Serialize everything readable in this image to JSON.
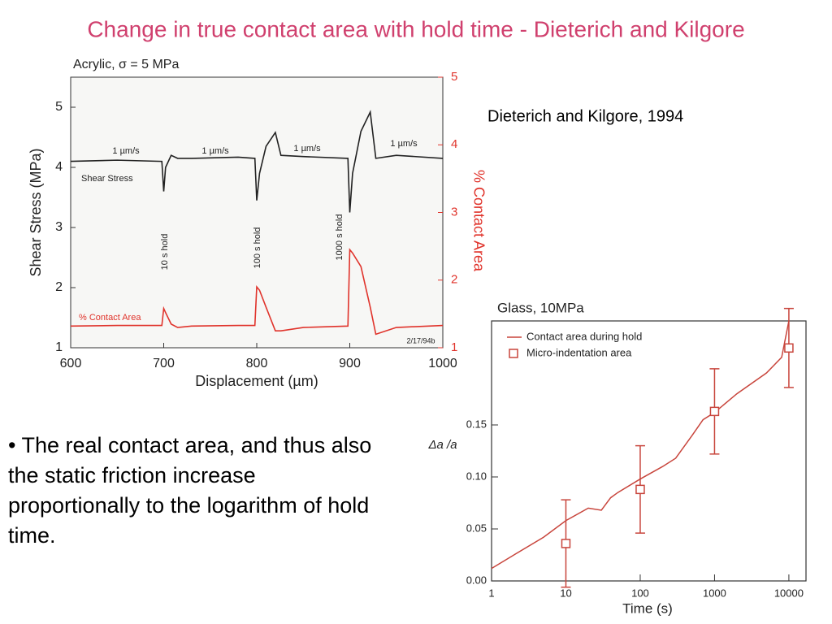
{
  "title": "Change in true contact area with hold time - Dieterich and Kilgore",
  "citation": "Dieterich and Kilgore, 1994",
  "bullet": "• The real contact area, and thus also the static friction increase proportionally to the logarithm of hold time.",
  "chart_data": [
    {
      "type": "line",
      "title": "Acrylic, σ = 5 MPa",
      "xlabel": "Displacement (µm)",
      "ylabel": "Shear Stress (MPa)",
      "y2label": "% Contact Area",
      "x": [
        600,
        650,
        698,
        700,
        702,
        708,
        715,
        730,
        780,
        798,
        800,
        803,
        810,
        820,
        826,
        850,
        898,
        900,
        903,
        912,
        922,
        928,
        950,
        1000
      ],
      "series": [
        {
          "name": "Shear Stress",
          "color": "#222222",
          "values": [
            4.1,
            4.12,
            4.1,
            3.6,
            4.0,
            4.2,
            4.15,
            4.15,
            4.17,
            4.15,
            3.45,
            3.9,
            4.35,
            4.58,
            4.2,
            4.18,
            4.15,
            3.25,
            3.9,
            4.6,
            4.92,
            4.15,
            4.2,
            4.15
          ]
        },
        {
          "name": "% Contact Area",
          "color": "#e0332b",
          "axis": "y2",
          "values": [
            1.32,
            1.33,
            1.33,
            1.58,
            1.52,
            1.35,
            1.3,
            1.32,
            1.33,
            1.33,
            1.9,
            1.85,
            1.6,
            1.25,
            1.25,
            1.3,
            1.32,
            2.45,
            2.4,
            2.2,
            1.6,
            1.2,
            1.3,
            1.33
          ]
        }
      ],
      "annotations": [
        "1 µm/s",
        "1 µm/s",
        "1 µm/s",
        "1 µm/s",
        "10 s hold",
        "100 s hold",
        "1000 s hold",
        "2/17/94b"
      ],
      "xlim": [
        600,
        1000
      ],
      "xticks": [
        600,
        700,
        800,
        900,
        1000
      ],
      "ylim": [
        1,
        5.5
      ],
      "yticks": [
        1,
        2,
        3,
        4,
        5
      ],
      "y2lim": [
        1,
        5
      ],
      "y2ticks": [
        1,
        2,
        3,
        4,
        5
      ]
    },
    {
      "type": "line",
      "title": "Glass, 10MPa",
      "xlabel": "Time (s)",
      "ylabel": "Δa /a",
      "log_x": true,
      "legend": "upper left",
      "xlim": [
        1,
        17000
      ],
      "xticks": [
        1,
        10,
        100,
        1000,
        10000
      ],
      "ylim": [
        0,
        0.25
      ],
      "yticks": [
        {
          "value": 0,
          "label": "0.00"
        },
        {
          "value": 0.05,
          "label": "0.05"
        },
        {
          "value": 0.1,
          "label": "0.10"
        },
        {
          "value": 0.15,
          "label": "0.15"
        }
      ],
      "series": [
        {
          "name": "Contact area during hold",
          "color": "#c8453c",
          "x": [
            1,
            2,
            5,
            10,
            20,
            30,
            40,
            50,
            100,
            200,
            300,
            500,
            700,
            1000,
            2000,
            5000,
            8000,
            10000
          ],
          "values": [
            0.012,
            0.025,
            0.042,
            0.058,
            0.07,
            0.068,
            0.08,
            0.085,
            0.098,
            0.11,
            0.118,
            0.14,
            0.155,
            0.162,
            0.18,
            0.2,
            0.215,
            0.25
          ]
        },
        {
          "name": "Micro-indentation area",
          "color": "#c8453c",
          "marker": "square",
          "x": [
            10,
            100,
            1000,
            10000
          ],
          "values": [
            0.036,
            0.088,
            0.163,
            0.224
          ],
          "errors": [
            0.042,
            0.042,
            0.041,
            0.038
          ]
        }
      ]
    }
  ]
}
